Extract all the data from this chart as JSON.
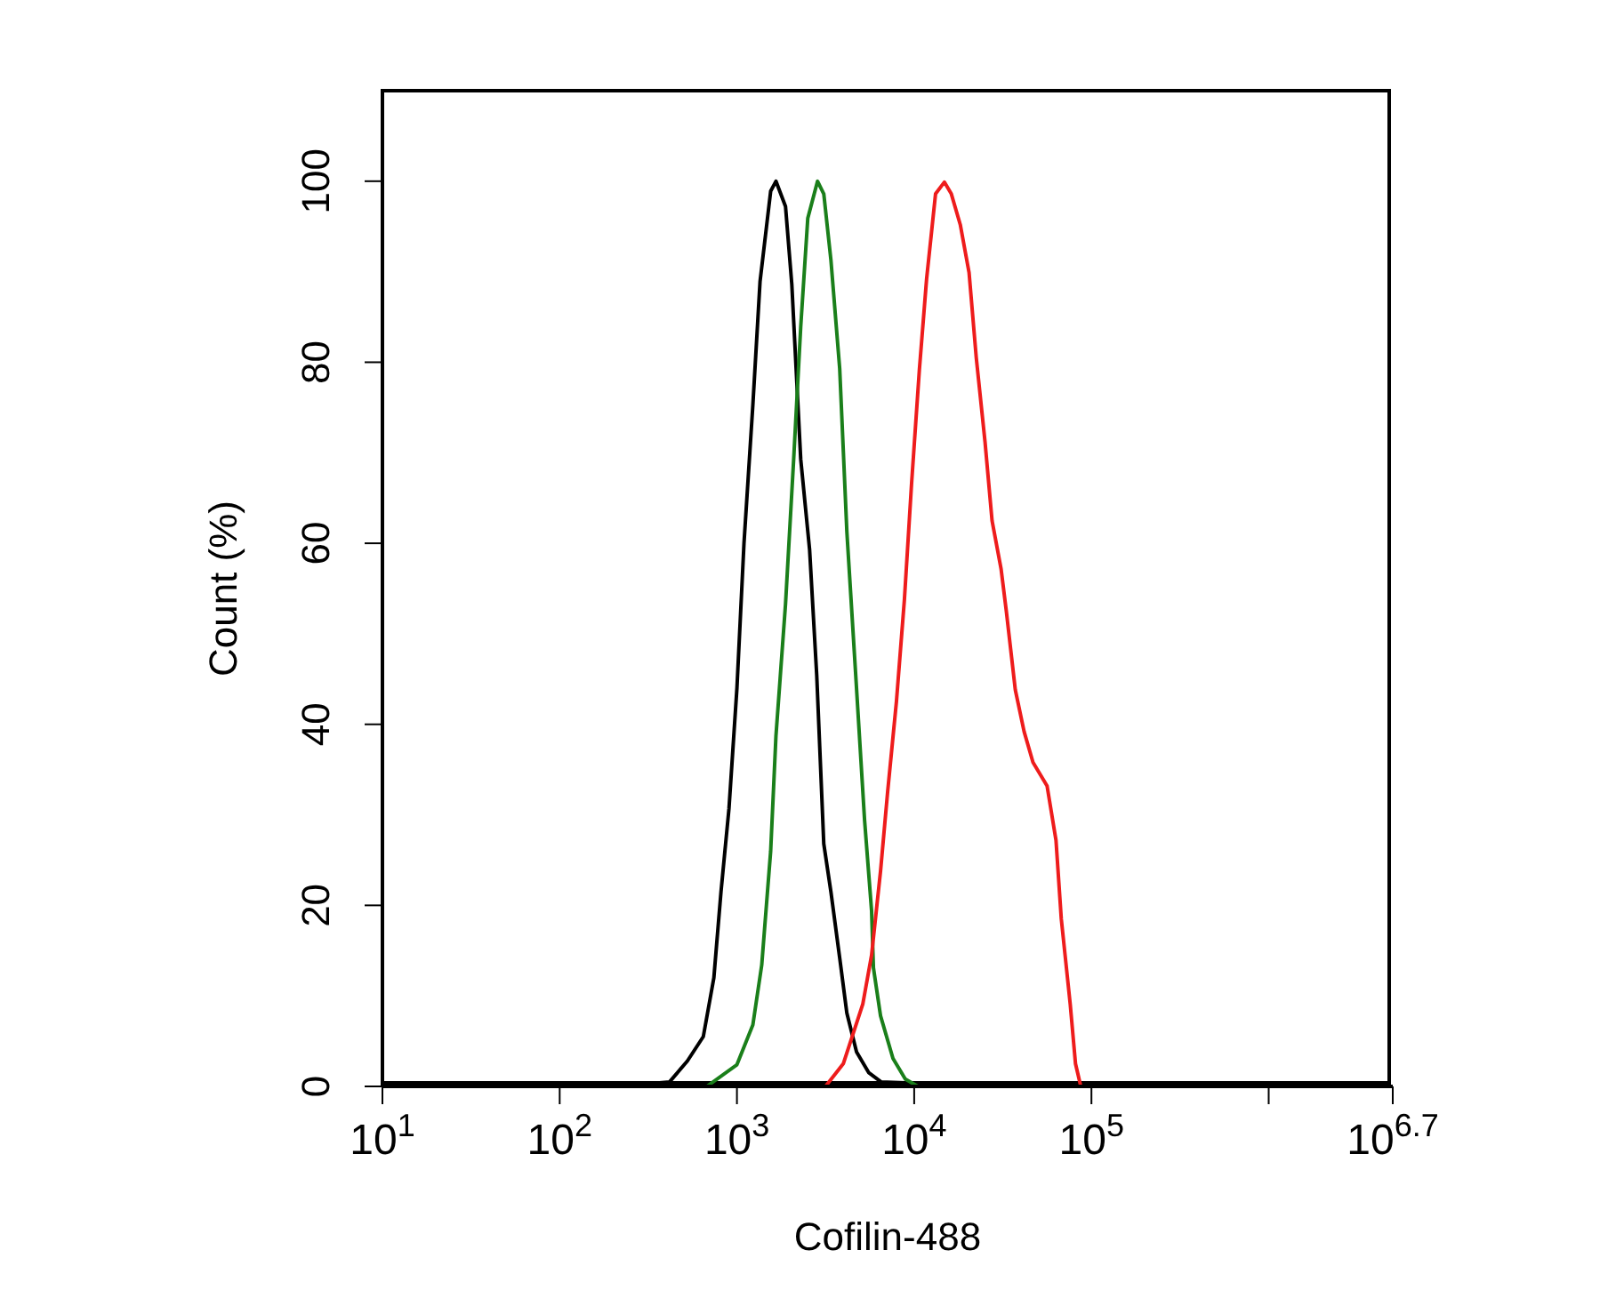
{
  "chart_data": {
    "type": "line",
    "xlabel": "Cofilin-488",
    "ylabel": "Count  (%)",
    "log": "x",
    "xlim": [
      10,
      5011872
    ],
    "xticks": [
      {
        "value": 10,
        "label": "10$^{1}$"
      },
      {
        "value": 100,
        "label": "10$^{2}$"
      },
      {
        "value": 1000,
        "label": "10$^{3}$"
      },
      {
        "value": 10000,
        "label": "10$^{4}$"
      },
      {
        "value": 100000,
        "label": "10$^{5}$"
      },
      {
        "value": 1000000,
        "label": null
      },
      {
        "value": 5011872,
        "label": "10$^{6.7}$"
      }
    ],
    "ylim": [
      0,
      110
    ],
    "yticks": [
      0,
      20,
      40,
      60,
      80,
      100
    ],
    "series": [
      {
        "color": "#000000",
        "x": [
          214,
          417,
          525,
          646,
          741,
          813,
          902,
          1000,
          1096,
          1230,
          1350,
          1550,
          1660,
          1880,
          2040,
          2290,
          2570,
          2820,
          3090,
          3390,
          3800,
          4170,
          4730,
          5550,
          6500,
          15500,
          33100
        ],
        "values": [
          0,
          0.5,
          2.8,
          5.5,
          12,
          21.5,
          30.7,
          44,
          60,
          75.3,
          88.9,
          98.9,
          100,
          97.2,
          88.6,
          69.3,
          59.3,
          45.4,
          26.8,
          21.5,
          14.2,
          8.1,
          3.8,
          1.5,
          0.5,
          0.2,
          0
        ]
      },
      {
        "color": "#1a7f1a",
        "x": [
          676,
          1000,
          1230,
          1380,
          1550,
          1660,
          1880,
          2090,
          2290,
          2510,
          2850,
          3090,
          3390,
          3800,
          4170,
          4680,
          5250,
          5750,
          5890,
          6460,
          7590,
          8910,
          10500
        ],
        "values": [
          0,
          2.4,
          6.8,
          13.4,
          26,
          38.7,
          53.3,
          69.3,
          83.9,
          95.9,
          100,
          98.6,
          91.3,
          79.3,
          61.3,
          45.4,
          29.4,
          19.4,
          13.1,
          7.8,
          3.1,
          0.8,
          0
        ]
      },
      {
        "color": "#ee1c1c",
        "x": [
          3160,
          3980,
          5130,
          5750,
          6460,
          7080,
          7940,
          8810,
          9660,
          10700,
          11750,
          13200,
          14800,
          16200,
          18200,
          20400,
          22400,
          25100,
          27500,
          30900,
          33100,
          37200,
          41700,
          46800,
          56200,
          63100,
          67600,
          75900,
          81300,
          87100
        ],
        "values": [
          0,
          2.5,
          9.1,
          14.5,
          23.8,
          32.5,
          42.5,
          53.8,
          66.5,
          79.2,
          89.2,
          98.6,
          99.9,
          98.6,
          95.2,
          89.9,
          80.5,
          71.2,
          62.5,
          57.2,
          52.5,
          43.8,
          39.2,
          35.8,
          33.2,
          27.2,
          18.5,
          9.1,
          2.5,
          0
        ]
      }
    ]
  }
}
